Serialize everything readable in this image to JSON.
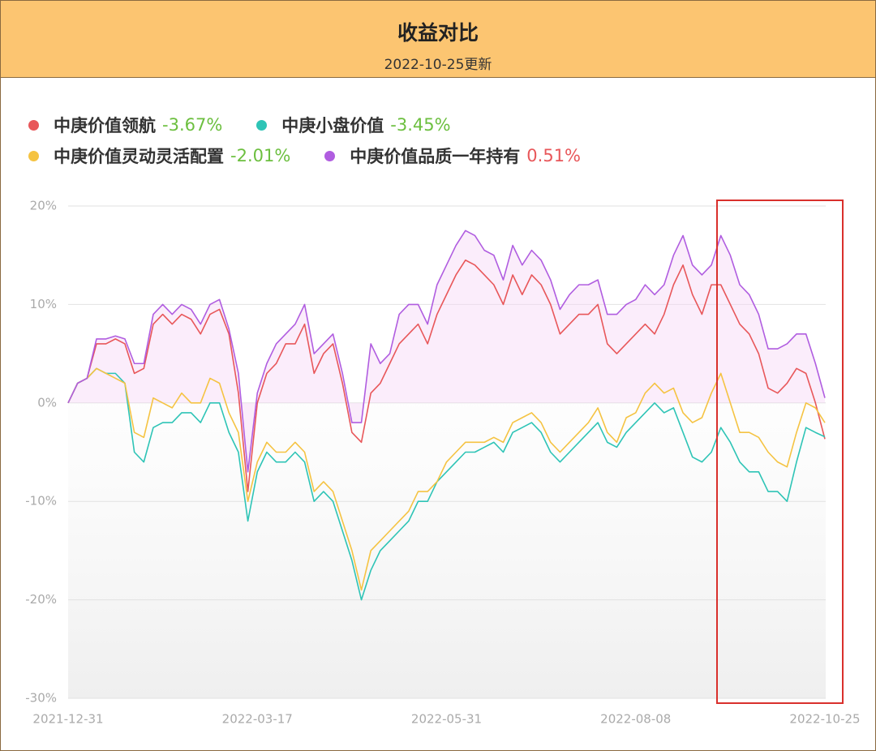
{
  "header": {
    "title": "收益对比",
    "subtitle": "2022-10-25更新"
  },
  "chart_data": {
    "type": "line",
    "categories": [
      "2021-12-31",
      null,
      null,
      null,
      null,
      null,
      null,
      null,
      null,
      null,
      null,
      null,
      null,
      null,
      null,
      null,
      null,
      null,
      null,
      null,
      "2022-03-17",
      null,
      null,
      null,
      null,
      null,
      null,
      null,
      null,
      null,
      null,
      null,
      null,
      null,
      null,
      null,
      null,
      null,
      null,
      null,
      "2022-05-31",
      null,
      null,
      null,
      null,
      null,
      null,
      null,
      null,
      null,
      null,
      null,
      null,
      null,
      null,
      null,
      null,
      null,
      null,
      null,
      "2022-08-08",
      null,
      null,
      null,
      null,
      null,
      null,
      null,
      null,
      null,
      null,
      null,
      null,
      null,
      null,
      null,
      null,
      null,
      null,
      null,
      "2022-10-25"
    ],
    "series": [
      {
        "name": "中庚价值领航",
        "color": "#e8575a",
        "legend_label": "-3.67%",
        "label_color": "#6cbf3f",
        "values": [
          0,
          2,
          2.5,
          6,
          6,
          6.5,
          6,
          3,
          3.5,
          8,
          9,
          8,
          9,
          8.5,
          7,
          9,
          9.5,
          7,
          1,
          -9,
          0,
          3,
          4,
          6,
          6,
          8,
          3,
          5,
          6,
          2,
          -3,
          -4,
          1,
          2,
          4,
          6,
          7,
          8,
          6,
          9,
          11,
          13,
          14.5,
          14,
          13,
          12,
          10,
          13,
          11,
          13,
          12,
          10,
          7,
          8,
          9,
          9,
          10,
          6,
          5,
          6,
          7,
          8,
          7,
          9,
          12,
          14,
          11,
          9,
          12,
          12,
          10,
          8,
          7,
          5,
          1.5,
          1,
          2,
          3.5,
          3,
          0,
          -3.67
        ]
      },
      {
        "name": "中庚小盘价值",
        "color": "#2ec4b6",
        "legend_label": "-3.45%",
        "label_color": "#6cbf3f",
        "values": [
          0,
          2,
          2.5,
          3.5,
          3,
          3,
          2,
          -5,
          -6,
          -2.5,
          -2,
          -2,
          -1,
          -1,
          -2,
          0,
          0,
          -3,
          -5,
          -12,
          -7,
          -5,
          -6,
          -6,
          -5,
          -6,
          -10,
          -9,
          -10,
          -13,
          -16,
          -20,
          -17,
          -15,
          -14,
          -13,
          -12,
          -10,
          -10,
          -8,
          -7,
          -6,
          -5,
          -5,
          -4.5,
          -4,
          -5,
          -3,
          -2.5,
          -2,
          -3,
          -5,
          -6,
          -5,
          -4,
          -3,
          -2,
          -4,
          -4.5,
          -3,
          -2,
          -1,
          0,
          -1,
          -0.5,
          -3,
          -5.5,
          -6,
          -5,
          -2.5,
          -4,
          -6,
          -7,
          -7,
          -9,
          -9,
          -10,
          -6,
          -2.5,
          -3,
          -3.45
        ]
      },
      {
        "name": "中庚价值灵动灵活配置",
        "color": "#f5c342",
        "legend_label": "-2.01%",
        "label_color": "#6cbf3f",
        "values": [
          0,
          2,
          2.5,
          3.5,
          3,
          2.5,
          2,
          -3,
          -3.5,
          0.5,
          0,
          -0.5,
          1,
          0,
          0,
          2.5,
          2,
          -1,
          -3,
          -10,
          -6,
          -4,
          -5,
          -5,
          -4,
          -5,
          -9,
          -8,
          -9,
          -12,
          -15,
          -19,
          -15,
          -14,
          -13,
          -12,
          -11,
          -9,
          -9,
          -8,
          -6,
          -5,
          -4,
          -4,
          -4,
          -3.5,
          -4,
          -2,
          -1.5,
          -1,
          -2,
          -4,
          -5,
          -4,
          -3,
          -2,
          -0.5,
          -3,
          -4,
          -1.5,
          -1,
          1,
          2,
          1,
          1.5,
          -1,
          -2,
          -1.5,
          1,
          3,
          0,
          -3,
          -3,
          -3.5,
          -5,
          -6,
          -6.5,
          -3,
          0,
          -0.5,
          -2.01
        ]
      },
      {
        "name": "中庚价值品质一年持有",
        "color": "#b05de0",
        "legend_label": "0.51%",
        "label_color": "#e8575a",
        "values": [
          0,
          2,
          2.5,
          6.5,
          6.5,
          6.8,
          6.5,
          4,
          4,
          9,
          10,
          9,
          10,
          9.5,
          8,
          10,
          10.5,
          7.5,
          3,
          -7,
          1,
          4,
          6,
          7,
          8,
          10,
          5,
          6,
          7,
          3,
          -2,
          -2,
          6,
          4,
          5,
          9,
          10,
          10,
          8,
          12,
          14,
          16,
          17.5,
          17,
          15.5,
          15,
          12.5,
          16,
          14,
          15.5,
          14.5,
          12.5,
          9.5,
          11,
          12,
          12,
          12.5,
          9,
          9,
          10,
          10.5,
          12,
          11,
          12,
          15,
          17,
          14,
          13,
          14,
          17,
          15,
          12,
          11,
          9,
          5.5,
          5.5,
          6,
          7,
          7,
          4,
          0.51
        ]
      }
    ],
    "ylim": [
      -30,
      20
    ],
    "yticks": [
      {
        "value": -30,
        "label": "-30%"
      },
      {
        "value": -20,
        "label": "-20%"
      },
      {
        "value": -10,
        "label": "-10%"
      },
      {
        "value": 0,
        "label": "0%"
      },
      {
        "value": 10,
        "label": "10%"
      },
      {
        "value": 20,
        "label": "20%"
      }
    ],
    "grid": true
  }
}
